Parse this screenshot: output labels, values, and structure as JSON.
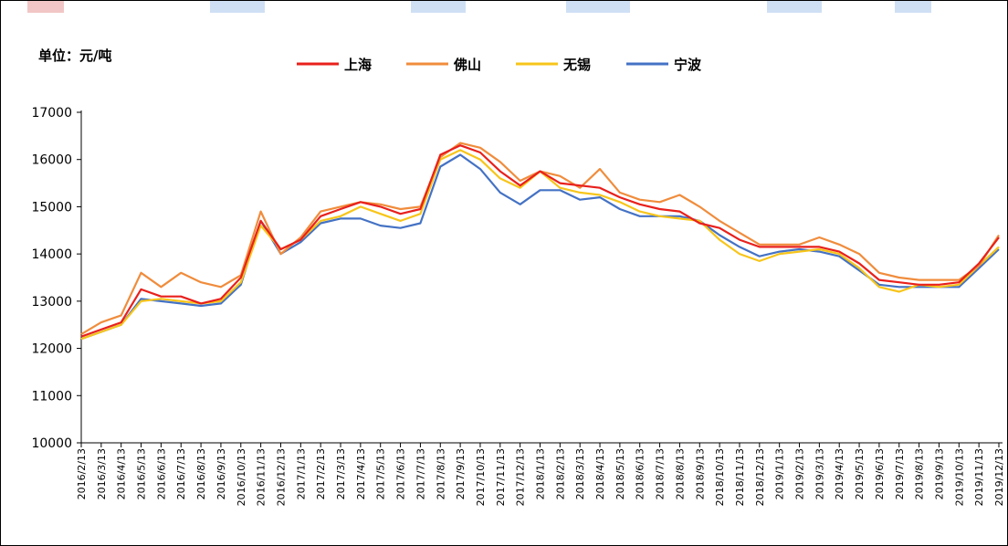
{
  "chart_data": {
    "type": "line",
    "unit_label": "单位：元/吨",
    "ylim": [
      10000,
      17000
    ],
    "yticks": [
      10000,
      11000,
      12000,
      13000,
      14000,
      15000,
      16000,
      17000
    ],
    "xticks": [
      "2016/2/13",
      "2016/3/13",
      "2016/4/13",
      "2016/5/13",
      "2016/6/13",
      "2016/7/13",
      "2016/8/13",
      "2016/9/13",
      "2016/10/13",
      "2016/11/13",
      "2016/12/13",
      "2017/1/13",
      "2017/2/13",
      "2017/3/13",
      "2017/4/13",
      "2017/5/13",
      "2017/6/13",
      "2017/7/13",
      "2017/8/13",
      "2017/9/13",
      "2017/10/13",
      "2017/11/13",
      "2017/12/13",
      "2018/1/13",
      "2018/2/13",
      "2018/3/13",
      "2018/4/13",
      "2018/5/13",
      "2018/6/13",
      "2018/7/13",
      "2018/8/13",
      "2018/9/13",
      "2018/10/13",
      "2018/11/13",
      "2018/12/13",
      "2019/1/13",
      "2019/2/13",
      "2019/3/13",
      "2019/4/13",
      "2019/5/13",
      "2019/6/13",
      "2019/7/13",
      "2019/8/13",
      "2019/9/13",
      "2019/10/13",
      "2019/11/13",
      "2019/12/13"
    ],
    "legend_position": "top-center",
    "grid": false,
    "series": [
      {
        "name": "上海",
        "color": "#E8201C",
        "values": [
          12250,
          12400,
          12550,
          13250,
          13100,
          13100,
          12950,
          13050,
          13500,
          14700,
          14100,
          14300,
          14800,
          14950,
          15100,
          15000,
          14850,
          14950,
          16100,
          16300,
          16150,
          15750,
          15450,
          15750,
          15500,
          15450,
          15400,
          15200,
          15050,
          14950,
          14900,
          14650,
          14550,
          14300,
          14150,
          14150,
          14150,
          14150,
          14050,
          13800,
          13450,
          13400,
          13350,
          13350,
          13400,
          13800,
          14350
        ]
      },
      {
        "name": "佛山",
        "color": "#F08C3C",
        "values": [
          12300,
          12550,
          12700,
          13600,
          13300,
          13600,
          13400,
          13300,
          13550,
          14900,
          14000,
          14350,
          14900,
          15000,
          15100,
          15050,
          14950,
          15000,
          16050,
          16350,
          16250,
          15950,
          15550,
          15750,
          15650,
          15400,
          15800,
          15300,
          15150,
          15100,
          15250,
          15000,
          14700,
          14450,
          14200,
          14200,
          14200,
          14350,
          14200,
          14000,
          13600,
          13500,
          13450,
          13450,
          13450,
          13750,
          14400
        ]
      },
      {
        "name": "无锡",
        "color": "#F7C51A",
        "values": [
          12200,
          12350,
          12500,
          13000,
          13050,
          13000,
          12950,
          13000,
          13400,
          14600,
          14100,
          14300,
          14700,
          14800,
          15000,
          14850,
          14700,
          14850,
          16000,
          16200,
          16000,
          15600,
          15400,
          15750,
          15400,
          15300,
          15250,
          15100,
          14900,
          14800,
          14750,
          14700,
          14300,
          14000,
          13850,
          14000,
          14050,
          14100,
          14000,
          13700,
          13300,
          13200,
          13350,
          13300,
          13350,
          13750,
          14150
        ]
      },
      {
        "name": "宁波",
        "color": "#4472C4",
        "values": [
          12200,
          12350,
          12500,
          13050,
          13000,
          12950,
          12900,
          12950,
          13350,
          14700,
          14000,
          14250,
          14650,
          14750,
          14750,
          14600,
          14550,
          14650,
          15850,
          16100,
          15800,
          15300,
          15050,
          15350,
          15350,
          15150,
          15200,
          14950,
          14800,
          14800,
          14800,
          14700,
          14400,
          14150,
          13950,
          14050,
          14100,
          14050,
          13950,
          13650,
          13350,
          13300,
          13300,
          13300,
          13300,
          13700,
          14100
        ]
      }
    ]
  }
}
